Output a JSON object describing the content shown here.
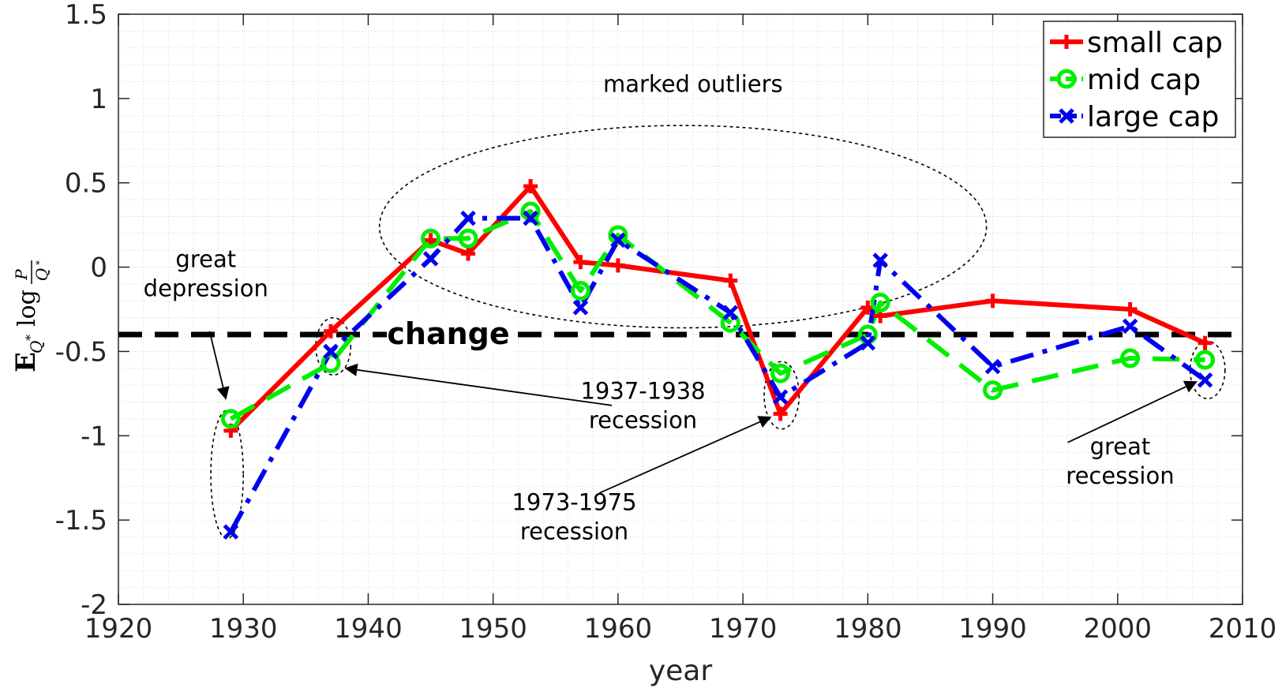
{
  "chart_data": {
    "type": "line",
    "title": "",
    "xlabel": "year",
    "ylabel": "E_{Q*} log P/Q*",
    "xlim": [
      1920,
      2010
    ],
    "ylim": [
      -2,
      1.5
    ],
    "xticks": [
      1920,
      1930,
      1940,
      1950,
      1960,
      1970,
      1980,
      1990,
      2000,
      2010
    ],
    "yticks": [
      -2,
      -1.5,
      -1,
      -0.5,
      0,
      0.5,
      1,
      1.5
    ],
    "ytick_labels": [
      "-2",
      "-1.5",
      "-1",
      "-0.5",
      "0",
      "0.5",
      "1",
      "1.5"
    ],
    "grid": "minor",
    "legend_position": "top-right",
    "reference_line": {
      "y": -0.4,
      "label": "change",
      "color": "#000000"
    },
    "series": [
      {
        "name": "small cap",
        "color": "#ff0000",
        "marker": "plus",
        "style": "solid",
        "x": [
          1929,
          1937,
          1945,
          1948,
          1953,
          1957,
          1960,
          1969,
          1973,
          1980,
          1981,
          1990,
          2001,
          2007
        ],
        "y": [
          -0.97,
          -0.38,
          0.16,
          0.08,
          0.48,
          0.03,
          0.01,
          -0.08,
          -0.87,
          -0.24,
          -0.29,
          -0.2,
          -0.25,
          -0.45
        ]
      },
      {
        "name": "mid cap",
        "color": "#00ee00",
        "marker": "circle",
        "style": "dashed",
        "x": [
          1929,
          1937,
          1945,
          1948,
          1953,
          1957,
          1960,
          1969,
          1973,
          1980,
          1981,
          1990,
          2001,
          2007
        ],
        "y": [
          -0.9,
          -0.57,
          0.17,
          0.17,
          0.33,
          -0.14,
          0.19,
          -0.33,
          -0.63,
          -0.4,
          -0.21,
          -0.73,
          -0.54,
          -0.55
        ]
      },
      {
        "name": "large cap",
        "color": "#0000ee",
        "marker": "x",
        "style": "dashdot",
        "x": [
          1929,
          1937,
          1945,
          1948,
          1953,
          1957,
          1960,
          1969,
          1973,
          1980,
          1981,
          1990,
          2001,
          2007
        ],
        "y": [
          -1.57,
          -0.5,
          0.05,
          0.29,
          0.29,
          -0.24,
          0.16,
          -0.27,
          -0.77,
          -0.45,
          0.04,
          -0.59,
          -0.35,
          -0.67
        ]
      }
    ],
    "annotations": [
      {
        "id": "marked-outliers",
        "text": [
          "marked outliers"
        ],
        "at": [
          1966,
          1.04
        ]
      },
      {
        "id": "great-depression",
        "text": [
          "great",
          "depression"
        ],
        "at": [
          1927,
          0.0
        ],
        "arrow_from": [
          1927.3,
          -0.38
        ],
        "arrow_to": [
          1928.6,
          -0.78
        ]
      },
      {
        "id": "recession-1937",
        "text": [
          "1937-1938",
          "recession"
        ],
        "at": [
          1962,
          -0.78
        ],
        "arrow_from": [
          1959.5,
          -0.82
        ],
        "arrow_to": [
          1938.2,
          -0.6
        ]
      },
      {
        "id": "recession-1973",
        "text": [
          "1973-1975",
          "recession"
        ],
        "at": [
          1956.5,
          -1.44
        ],
        "arrow_from": [
          1958.5,
          -1.34
        ],
        "arrow_to": [
          1972.2,
          -0.89
        ]
      },
      {
        "id": "great-recession",
        "text": [
          "great",
          "recession"
        ],
        "at": [
          2000.2,
          -1.11
        ],
        "arrow_from": [
          1996,
          -1.04
        ],
        "arrow_to": [
          2006.3,
          -0.68
        ]
      }
    ],
    "outlier_ellipses": [
      {
        "center": [
          1965.2,
          0.24
        ],
        "radius": [
          24.3,
          0.6
        ]
      },
      {
        "center": [
          1928.7,
          -1.23
        ],
        "radius": [
          1.3,
          0.38
        ]
      },
      {
        "center": [
          1937.2,
          -0.47
        ],
        "radius": [
          1.4,
          0.17
        ]
      },
      {
        "center": [
          1973.1,
          -0.76
        ],
        "radius": [
          1.4,
          0.2
        ]
      },
      {
        "center": [
          2007.2,
          -0.61
        ],
        "radius": [
          1.4,
          0.17
        ]
      }
    ]
  }
}
